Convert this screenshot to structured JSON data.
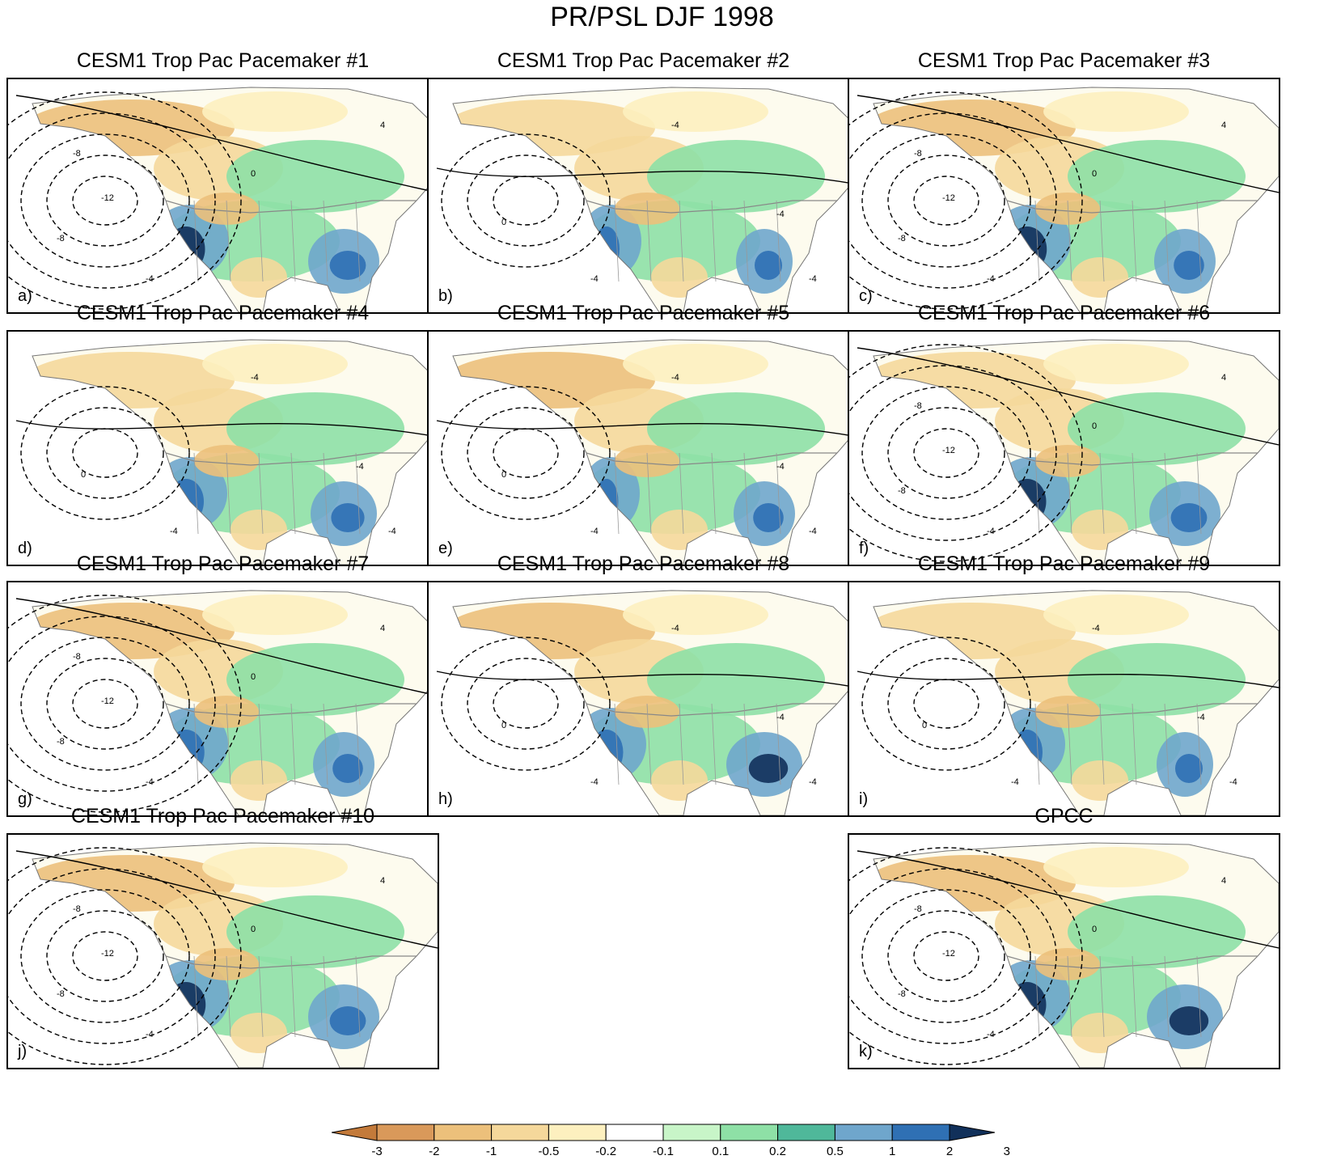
{
  "title": "PR/PSL DJF 1998",
  "panels": [
    {
      "title": "CESM1 Trop Pac Pacemaker #1",
      "letter": "a)",
      "pattern": "low-west",
      "wet_west": 0.9,
      "wet_east": 0.8,
      "dry_north": 0.6
    },
    {
      "title": "CESM1 Trop Pac Pacemaker #2",
      "letter": "b)",
      "pattern": "weak",
      "wet_west": 0.4,
      "wet_east": 0.5,
      "dry_north": 0.5
    },
    {
      "title": "CESM1 Trop Pac Pacemaker #3",
      "letter": "c)",
      "pattern": "low-west",
      "wet_west": 0.95,
      "wet_east": 0.6,
      "dry_north": 0.6
    },
    {
      "title": "CESM1 Trop Pac Pacemaker #4",
      "letter": "d)",
      "pattern": "weak",
      "wet_west": 0.8,
      "wet_east": 0.7,
      "dry_north": 0.4
    },
    {
      "title": "CESM1 Trop Pac Pacemaker #5",
      "letter": "e)",
      "pattern": "weak",
      "wet_west": 0.3,
      "wet_east": 0.6,
      "dry_north": 0.7
    },
    {
      "title": "CESM1 Trop Pac Pacemaker #6",
      "letter": "f)",
      "pattern": "low-west",
      "wet_west": 0.9,
      "wet_east": 0.8,
      "dry_north": 0.5
    },
    {
      "title": "CESM1 Trop Pac Pacemaker #7",
      "letter": "g)",
      "pattern": "low-west",
      "wet_west": 0.85,
      "wet_east": 0.6,
      "dry_north": 0.6
    },
    {
      "title": "CESM1 Trop Pac Pacemaker #8",
      "letter": "h)",
      "pattern": "weak",
      "wet_west": 0.7,
      "wet_east": 0.9,
      "dry_north": 0.6
    },
    {
      "title": "CESM1 Trop Pac Pacemaker #9",
      "letter": "i)",
      "pattern": "weak",
      "wet_west": 0.6,
      "wet_east": 0.5,
      "dry_north": 0.4
    },
    {
      "title": "CESM1 Trop Pac Pacemaker #10",
      "letter": "j)",
      "pattern": "low-west",
      "wet_west": 0.95,
      "wet_east": 0.8,
      "dry_north": 0.6
    },
    {
      "title": "GPCC",
      "letter": "k)",
      "pattern": "low-west",
      "wet_west": 0.9,
      "wet_east": 0.9,
      "dry_north": 0.7
    }
  ],
  "colorbar": {
    "labels": [
      "-3",
      "-2",
      "-1",
      "-0.5",
      "-0.2",
      "-0.1",
      "0.1",
      "0.2",
      "0.5",
      "1",
      "2",
      "3"
    ],
    "colors": [
      "#c37a3a",
      "#d9995a",
      "#ecc07b",
      "#f5d89b",
      "#fdf0bf",
      "#ffffff",
      "#c8f5c8",
      "#8ee0a6",
      "#4fb89a",
      "#6fa6cc",
      "#2f70b4",
      "#11305a"
    ]
  },
  "contour_labels": [
    "-12",
    "-8",
    "-4",
    "0",
    "4"
  ]
}
